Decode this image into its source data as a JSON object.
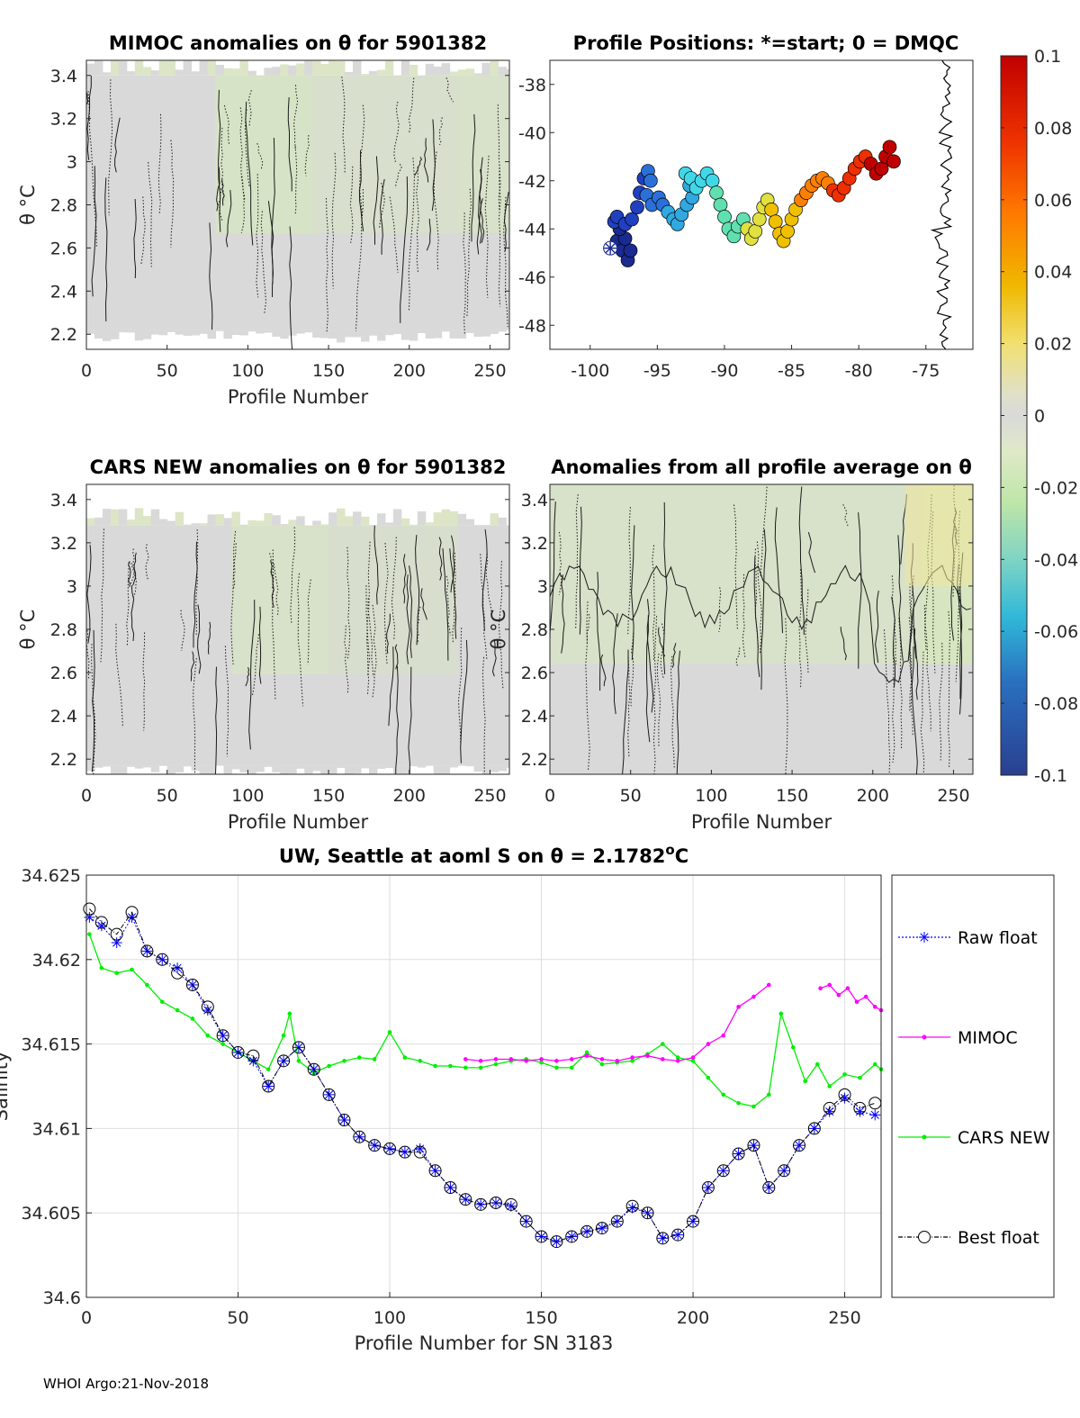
{
  "footer": "WHOI Argo:21-Nov-2018",
  "chart_data": [
    {
      "id": "mimoc",
      "type": "heatmap",
      "title": "MIMOC anomalies on θ  for 5901382",
      "xlabel": "Profile Number",
      "ylabel": "θ °C",
      "xlim": [
        0,
        262
      ],
      "ylim": [
        2.13,
        3.47
      ],
      "xticks": [
        0,
        50,
        100,
        150,
        200,
        250
      ],
      "yticks": [
        2.2,
        2.4,
        2.6,
        2.8,
        3,
        3.2,
        3.4
      ],
      "ytick_labels": [
        "2.2",
        "2.4",
        "2.6",
        "2.8",
        "3",
        "3.2",
        "3.4"
      ],
      "ylabel_side": "left",
      "coverage": {
        "top": 3.4,
        "bottom": 2.22
      },
      "green_bands": [
        [
          80,
          140,
          0.55
        ],
        [
          140,
          230,
          0.35
        ],
        [
          230,
          262,
          0.45
        ]
      ]
    },
    {
      "id": "positions",
      "type": "scatter",
      "title": "Profile Positions: *=start; 0 = DMQC",
      "xlabel": "",
      "ylabel": "",
      "xlim": [
        -103,
        -71.5
      ],
      "ylim": [
        -49,
        -37
      ],
      "xticks": [
        -100,
        -95,
        -90,
        -85,
        -80,
        -75
      ],
      "yticks": [
        -38,
        -40,
        -42,
        -44,
        -46,
        -48
      ],
      "start": {
        "lon": -98.5,
        "lat": -44.8
      },
      "track": [
        [
          -98.5,
          -44.8
        ],
        [
          -98.0,
          -44.5
        ],
        [
          -97.6,
          -44.9
        ],
        [
          -97.2,
          -45.3
        ],
        [
          -97.0,
          -44.9
        ],
        [
          -97.4,
          -44.4
        ],
        [
          -97.8,
          -44.0
        ],
        [
          -98.2,
          -43.7
        ],
        [
          -98.0,
          -43.5
        ],
        [
          -97.4,
          -43.8
        ],
        [
          -96.9,
          -43.6
        ],
        [
          -96.5,
          -43.1
        ],
        [
          -96.3,
          -42.5
        ],
        [
          -96.0,
          -41.9
        ],
        [
          -95.7,
          -41.6
        ],
        [
          -95.5,
          -42.0
        ],
        [
          -95.8,
          -42.6
        ],
        [
          -95.4,
          -43.0
        ],
        [
          -94.9,
          -42.7
        ],
        [
          -94.6,
          -43.0
        ],
        [
          -94.2,
          -43.3
        ],
        [
          -93.8,
          -43.6
        ],
        [
          -93.5,
          -43.8
        ],
        [
          -93.2,
          -43.4
        ],
        [
          -92.8,
          -43.0
        ],
        [
          -92.4,
          -42.7
        ],
        [
          -92.6,
          -42.2
        ],
        [
          -92.9,
          -41.7
        ],
        [
          -92.5,
          -41.9
        ],
        [
          -92.1,
          -42.3
        ],
        [
          -91.7,
          -42.0
        ],
        [
          -91.3,
          -41.7
        ],
        [
          -90.9,
          -42.0
        ],
        [
          -90.6,
          -42.5
        ],
        [
          -90.3,
          -43.0
        ],
        [
          -90.0,
          -43.5
        ],
        [
          -89.7,
          -44.0
        ],
        [
          -89.3,
          -44.3
        ],
        [
          -89.0,
          -43.9
        ],
        [
          -88.6,
          -43.6
        ],
        [
          -88.3,
          -44.0
        ],
        [
          -88.0,
          -44.4
        ],
        [
          -87.7,
          -44.1
        ],
        [
          -87.4,
          -43.6
        ],
        [
          -87.1,
          -43.1
        ],
        [
          -86.8,
          -42.8
        ],
        [
          -86.5,
          -43.2
        ],
        [
          -86.2,
          -43.7
        ],
        [
          -85.9,
          -44.2
        ],
        [
          -85.6,
          -44.5
        ],
        [
          -85.3,
          -44.1
        ],
        [
          -85.0,
          -43.6
        ],
        [
          -84.7,
          -43.2
        ],
        [
          -84.3,
          -42.8
        ],
        [
          -83.9,
          -42.5
        ],
        [
          -83.5,
          -42.2
        ],
        [
          -83.1,
          -42.0
        ],
        [
          -82.7,
          -41.9
        ],
        [
          -82.3,
          -42.1
        ],
        [
          -81.9,
          -42.4
        ],
        [
          -81.5,
          -42.6
        ],
        [
          -81.1,
          -42.3
        ],
        [
          -80.7,
          -41.9
        ],
        [
          -80.3,
          -41.5
        ],
        [
          -79.9,
          -41.2
        ],
        [
          -79.5,
          -41.0
        ],
        [
          -79.1,
          -41.3
        ],
        [
          -78.7,
          -41.7
        ],
        [
          -78.3,
          -41.5
        ],
        [
          -78.0,
          -41.0
        ],
        [
          -77.7,
          -40.6
        ],
        [
          -77.4,
          -41.2
        ]
      ],
      "coastline_lon": [
        -74.0,
        -73.0
      ]
    },
    {
      "id": "cars",
      "type": "heatmap",
      "title": "CARS NEW anomalies on θ for 5901382",
      "xlabel": "Profile Number",
      "ylabel": "θ °C",
      "xlim": [
        0,
        262
      ],
      "ylim": [
        2.13,
        3.47
      ],
      "xticks": [
        0,
        50,
        100,
        150,
        200,
        250
      ],
      "yticks": [
        2.2,
        2.4,
        2.6,
        2.8,
        3,
        3.2,
        3.4
      ],
      "ytick_labels": [
        "2.2",
        "2.4",
        "2.6",
        "2.8",
        "3",
        "3.2",
        "3.4"
      ],
      "ylabel_side": "left",
      "coverage": {
        "top": 3.28,
        "bottom": 2.17
      },
      "green_bands": [
        [
          90,
          150,
          0.45
        ],
        [
          150,
          230,
          0.3
        ]
      ]
    },
    {
      "id": "allavg",
      "type": "heatmap",
      "title": "Anomalies from all profile average on θ",
      "xlabel": "Profile Number",
      "ylabel": "θ °C",
      "xlim": [
        0,
        262
      ],
      "ylim": [
        2.13,
        3.47
      ],
      "xticks": [
        0,
        50,
        100,
        150,
        200,
        250
      ],
      "yticks": [
        2.2,
        2.4,
        2.6,
        2.8,
        3,
        3.2,
        3.4
      ],
      "ytick_labels": [
        "2.2",
        "2.4",
        "2.6",
        "2.8",
        "3",
        "3.2",
        "3.4"
      ],
      "ylabel_side": "right",
      "coverage": {
        "top": 3.47,
        "bottom": 2.13
      },
      "green_bands": [
        [
          0,
          230,
          0.45
        ],
        [
          230,
          262,
          0.7
        ]
      ]
    },
    {
      "id": "colorbar",
      "type": "heatmap",
      "title": "",
      "range": [
        -0.1,
        0.1
      ],
      "tick_values": [
        0.1,
        0.08,
        0.06,
        0.04,
        0.02,
        0,
        -0.02,
        -0.04,
        -0.06,
        -0.08,
        -0.1
      ],
      "tick_labels": [
        "0.1",
        "0.08",
        "0.06",
        "0.04",
        "0.02",
        "0",
        "-0.02",
        "-0.04",
        "-0.06",
        "-0.08",
        "-0.1"
      ]
    },
    {
      "id": "salinity",
      "type": "line",
      "title": "UW, Seattle at aoml S on θ = 2.1782",
      "title_sup": "o",
      "title_unit": "C",
      "xlabel": "Profile Number for SN 3183",
      "ylabel": "Salinity",
      "xlim": [
        0,
        262
      ],
      "ylim": [
        34.6,
        34.625
      ],
      "xticks": [
        0,
        50,
        100,
        150,
        200,
        250
      ],
      "yticks": [
        34.6,
        34.605,
        34.61,
        34.615,
        34.62,
        34.625
      ],
      "ytick_labels": [
        "34.6",
        "34.605",
        "34.61",
        "34.615",
        "34.62",
        "34.625"
      ],
      "legend": {
        "position": "right",
        "entries": [
          "Raw float",
          "MIMOC",
          "CARS NEW",
          "Best float"
        ]
      },
      "series": [
        {
          "name": "Raw float",
          "color": "#0000ff",
          "x": [
            1,
            5,
            10,
            15,
            20,
            25,
            30,
            35,
            40,
            45,
            50,
            55,
            60,
            65,
            70,
            75,
            80,
            85,
            90,
            95,
            100,
            105,
            110,
            115,
            120,
            125,
            130,
            135,
            140,
            145,
            150,
            155,
            160,
            165,
            170,
            175,
            180,
            185,
            190,
            195,
            200,
            205,
            210,
            215,
            220,
            225,
            230,
            235,
            240,
            245,
            250,
            255,
            260
          ],
          "y": [
            34.6225,
            34.622,
            34.621,
            34.6225,
            34.6205,
            34.62,
            34.6195,
            34.6185,
            34.617,
            34.6155,
            34.6145,
            34.614,
            34.6125,
            34.614,
            34.6148,
            34.6135,
            34.612,
            34.6105,
            34.6095,
            34.609,
            34.6088,
            34.6086,
            34.6088,
            34.6075,
            34.6065,
            34.6058,
            34.6055,
            34.6056,
            34.6054,
            34.6045,
            34.6036,
            34.6033,
            34.6036,
            34.6039,
            34.6041,
            34.6045,
            34.6053,
            34.605,
            34.6035,
            34.6037,
            34.6045,
            34.6065,
            34.6075,
            34.6085,
            34.609,
            34.6065,
            34.6075,
            34.609,
            34.61,
            34.611,
            34.6118,
            34.611,
            34.6108
          ]
        },
        {
          "name": "MIMOC",
          "color": "#ff00ff",
          "x": [
            125,
            130,
            135,
            140,
            145,
            150,
            155,
            160,
            165,
            170,
            175,
            180,
            185,
            190,
            195,
            200,
            205,
            210,
            215,
            220,
            225,
            242,
            245,
            248,
            251,
            254,
            257,
            260,
            262
          ],
          "y": [
            34.6141,
            34.614,
            34.6141,
            34.6141,
            34.614,
            34.6141,
            34.614,
            34.6141,
            34.6143,
            34.6141,
            34.614,
            34.6142,
            34.6143,
            34.6141,
            34.614,
            34.6142,
            34.615,
            34.6155,
            34.6172,
            34.6178,
            34.6185,
            34.6183,
            34.6185,
            34.6179,
            34.6183,
            34.6175,
            34.6178,
            34.6172,
            34.617
          ]
        },
        {
          "name": "CARS NEW",
          "color": "#00ee00",
          "x": [
            1,
            5,
            10,
            15,
            20,
            25,
            30,
            35,
            40,
            45,
            50,
            55,
            60,
            65,
            67,
            70,
            75,
            80,
            85,
            90,
            95,
            100,
            105,
            110,
            115,
            120,
            125,
            130,
            135,
            140,
            145,
            150,
            155,
            160,
            165,
            170,
            175,
            180,
            185,
            190,
            195,
            200,
            205,
            210,
            215,
            220,
            225,
            229,
            233,
            237,
            241,
            245,
            250,
            255,
            260,
            262
          ],
          "y": [
            34.6215,
            34.6195,
            34.6192,
            34.6194,
            34.6185,
            34.6175,
            34.617,
            34.6165,
            34.6155,
            34.615,
            34.6145,
            34.614,
            34.6135,
            34.6155,
            34.6168,
            34.614,
            34.6133,
            34.6137,
            34.614,
            34.6142,
            34.6141,
            34.6157,
            34.6142,
            34.614,
            34.6137,
            34.6137,
            34.6136,
            34.6136,
            34.6138,
            34.614,
            34.6141,
            34.6139,
            34.6136,
            34.6136,
            34.6145,
            34.6138,
            34.6139,
            34.614,
            34.6144,
            34.615,
            34.6142,
            34.614,
            34.613,
            34.612,
            34.6115,
            34.6113,
            34.612,
            34.6168,
            34.6148,
            34.6128,
            34.6138,
            34.6125,
            34.6132,
            34.613,
            34.6138,
            34.6135
          ]
        },
        {
          "name": "Best float",
          "color": "#000000",
          "x": [
            1,
            5,
            10,
            15,
            20,
            25,
            30,
            35,
            40,
            45,
            50,
            55,
            60,
            65,
            70,
            75,
            80,
            85,
            90,
            95,
            100,
            105,
            110,
            115,
            120,
            125,
            130,
            135,
            140,
            145,
            150,
            155,
            160,
            165,
            170,
            175,
            180,
            185,
            190,
            195,
            200,
            205,
            210,
            215,
            220,
            225,
            230,
            235,
            240,
            245,
            250,
            255,
            260
          ],
          "y": [
            34.623,
            34.6222,
            34.6215,
            34.6228,
            34.6205,
            34.62,
            34.6192,
            34.6185,
            34.6172,
            34.6155,
            34.6145,
            34.6143,
            34.6125,
            34.614,
            34.6148,
            34.6135,
            34.612,
            34.6105,
            34.6095,
            34.609,
            34.6088,
            34.6086,
            34.6086,
            34.6075,
            34.6065,
            34.6058,
            34.6055,
            34.6056,
            34.6055,
            34.6045,
            34.6036,
            34.6033,
            34.6036,
            34.6039,
            34.6041,
            34.6045,
            34.6054,
            34.605,
            34.6035,
            34.6037,
            34.6045,
            34.6065,
            34.6075,
            34.6085,
            34.609,
            34.6065,
            34.6075,
            34.609,
            34.61,
            34.6112,
            34.612,
            34.6112,
            34.6115
          ]
        }
      ]
    }
  ]
}
